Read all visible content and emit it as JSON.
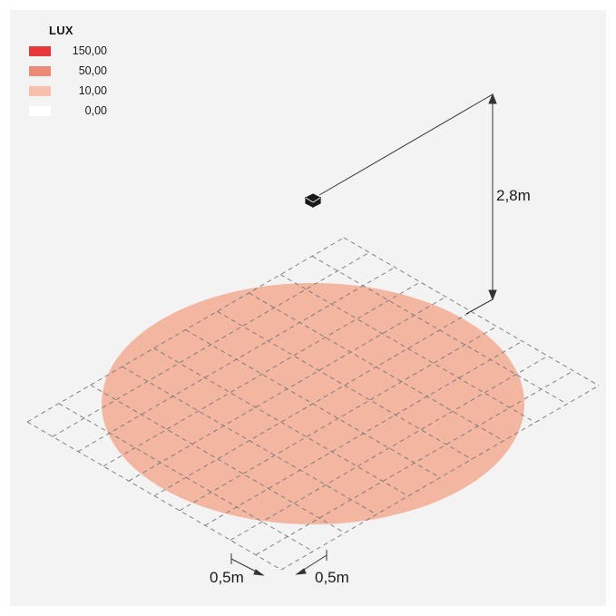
{
  "legend": {
    "title": "LUX",
    "entries": [
      {
        "value": "150,00",
        "color": "#e8373a"
      },
      {
        "value": "50,00",
        "color": "#ec8b77"
      },
      {
        "value": "10,00",
        "color": "#f8bfad"
      },
      {
        "value": "0,00",
        "color": "#ffffff"
      }
    ]
  },
  "dimensions": {
    "height": "2,8m",
    "grid_x": "0,5m",
    "grid_y": "0,5m"
  },
  "colors": {
    "background": "#f3f3f3",
    "light_pool": "#f3b6a1",
    "grid_line": "#777777",
    "dimension_line": "#333333"
  },
  "icons": {
    "luminaire": "luminaire-cube-icon"
  }
}
